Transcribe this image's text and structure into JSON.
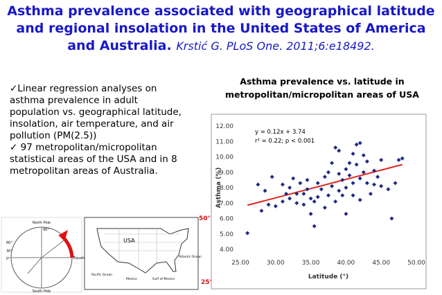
{
  "slide": {
    "title": "Asthma prevalence associated with geographical latitude and regional insolation in the United States of America and Australia.",
    "citation": "Krstić G. PLoS One. 2011;6:e18492.",
    "bullets": [
      "✓Linear regression analyses on asthma prevalence in adult population vs. geographical latitude, insolation, air temperature, and air pollution (PM(2.5))",
      "✓ 97 metropolitan/micropolitan statistical areas of the USA and in 8 metropolitan areas of Australia."
    ],
    "globe_labels": [
      "North Pole",
      "South Pole",
      "Equator",
      "90°",
      "60°",
      "30°",
      "0°"
    ],
    "map_labels": [
      "USA",
      "Pacific Ocean",
      "Atlantic Ocean",
      "Mexico",
      "Gulf of Mexico"
    ],
    "lat_top": "50°",
    "lat_bottom": "25°"
  },
  "chart_data": {
    "type": "scatter",
    "title": "Asthma prevalence vs. latitude in metropolitan/micropolitan areas of USA",
    "x_label": "Latitude (°)",
    "y_label": "Asthma (%)",
    "annotations": [
      "y = 0.12x + 3.74",
      "r² = 0.22;  p < 0.001"
    ],
    "color": "#1f2a80",
    "trend_color": "#e0281e",
    "x": [
      26,
      27.5,
      28,
      28.5,
      29,
      29.5,
      30,
      31,
      31,
      31.5,
      32,
      32,
      32.5,
      33,
      33,
      33.5,
      34,
      34,
      34.5,
      34.5,
      35,
      35,
      35.5,
      35.5,
      36,
      36,
      36.5,
      37,
      37,
      37.5,
      37.5,
      38,
      38,
      38.5,
      38.5,
      39,
      39,
      39,
      39.5,
      39.5,
      40,
      40,
      40,
      40.5,
      40.5,
      41,
      41,
      41,
      41.5,
      41.5,
      42,
      42,
      42,
      42.5,
      42.5,
      43,
      43,
      43.5,
      44,
      44,
      44.5,
      45,
      45,
      46,
      46.5,
      47,
      47.5,
      48
    ],
    "values": [
      5.05,
      8.2,
      6.5,
      7.8,
      6.9,
      8.7,
      6.8,
      7.1,
      8.2,
      7.6,
      7.3,
      8.0,
      8.6,
      7.0,
      7.6,
      8.3,
      6.9,
      7.6,
      7.9,
      8.5,
      7.3,
      6.3,
      7.1,
      5.5,
      7.4,
      8.3,
      7.9,
      6.7,
      8.7,
      9.0,
      7.5,
      8.1,
      9.6,
      10.6,
      7.1,
      7.8,
      8.9,
      10.4,
      7.5,
      8.5,
      9.2,
      8.0,
      6.3,
      8.8,
      9.6,
      10.2,
      7.5,
      8.3,
      9.5,
      10.8,
      10.9,
      8.6,
      7.2,
      9.0,
      10.1,
      8.3,
      9.7,
      7.6,
      8.2,
      9.1,
      8.7,
      9.8,
      8.1,
      7.9,
      6.0,
      8.3,
      9.8,
      9.9
    ],
    "trendline": {
      "x": [
        26,
        48
      ],
      "y": [
        6.86,
        9.5
      ]
    },
    "xlim": [
      25,
      50
    ],
    "ylim": [
      4,
      12
    ],
    "xticks": [
      {
        "value": 25,
        "label": "25.00"
      },
      {
        "value": 30,
        "label": "30.00"
      },
      {
        "value": 35,
        "label": "35.00"
      },
      {
        "value": 40,
        "label": "40.00"
      },
      {
        "value": 45,
        "label": "45.00"
      },
      {
        "value": 50,
        "label": "50.00"
      }
    ],
    "yticks": [
      {
        "value": 4,
        "label": "4.00"
      },
      {
        "value": 5,
        "label": "5.00"
      },
      {
        "value": 6,
        "label": "6.00"
      },
      {
        "value": 7,
        "label": "7.00"
      },
      {
        "value": 8,
        "label": "8.00"
      },
      {
        "value": 9,
        "label": "9.00"
      },
      {
        "value": 10,
        "label": "10.00"
      },
      {
        "value": 11,
        "label": "11.00"
      },
      {
        "value": 12,
        "label": "12.00"
      }
    ]
  }
}
